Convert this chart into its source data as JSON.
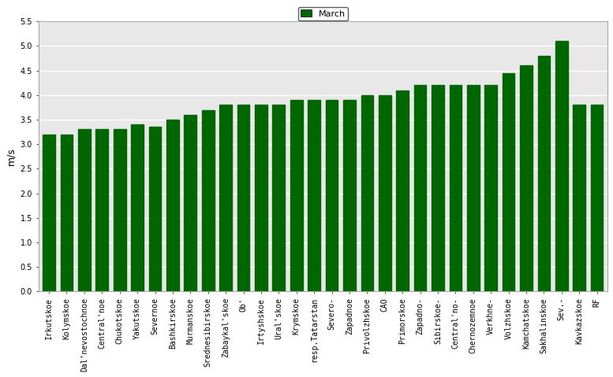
{
  "categories": [
    "Irkutskoe",
    "Kolymskoe",
    "Dal'nevostochnoe",
    "Central'noe",
    "Chukotskoe",
    "Yakutskoe",
    "Severnoe",
    "Bashkirskoe",
    "Murmanskoe",
    "Srednesibirskoe",
    "Zabaykal'skoe",
    "Ob'",
    "Irtyshskoe",
    "Ural'skoe",
    "Krymskoe",
    "resp.Tatarstan",
    "Severo-",
    "Zapadnoe",
    "Privolzhskoe",
    "CAO",
    "Primorskoe",
    "Zapadno-",
    "Sibirskoe-",
    "Central'no-",
    "Chernozemnoe",
    "Verkhne-",
    "Volzhskoe",
    "Kamchatskoe",
    "Sakhalinskoe",
    "Sev.-",
    "Kavkazskoe",
    "RF"
  ],
  "values": [
    3.2,
    3.2,
    3.3,
    3.3,
    3.3,
    3.4,
    3.35,
    3.5,
    3.6,
    3.7,
    3.8,
    3.8,
    3.8,
    3.8,
    3.9,
    3.9,
    3.9,
    3.9,
    4.0,
    4.0,
    4.1,
    4.2,
    4.2,
    4.2,
    4.2,
    4.2,
    4.45,
    4.6,
    4.8,
    5.1,
    3.8,
    3.8
  ],
  "bar_color": "#006600",
  "ylabel": "m/s",
  "ylim": [
    0,
    5.5
  ],
  "yticks": [
    0.0,
    0.5,
    1.0,
    1.5,
    2.0,
    2.5,
    3.0,
    3.5,
    4.0,
    4.5,
    5.0,
    5.5
  ],
  "legend_label": "March",
  "legend_color": "#006600",
  "plot_bg_color": "#e8e8e8",
  "fig_bg_color": "#ffffff",
  "grid_color": "#ffffff",
  "tick_fontsize": 7,
  "ylabel_fontsize": 9,
  "legend_fontsize": 8
}
